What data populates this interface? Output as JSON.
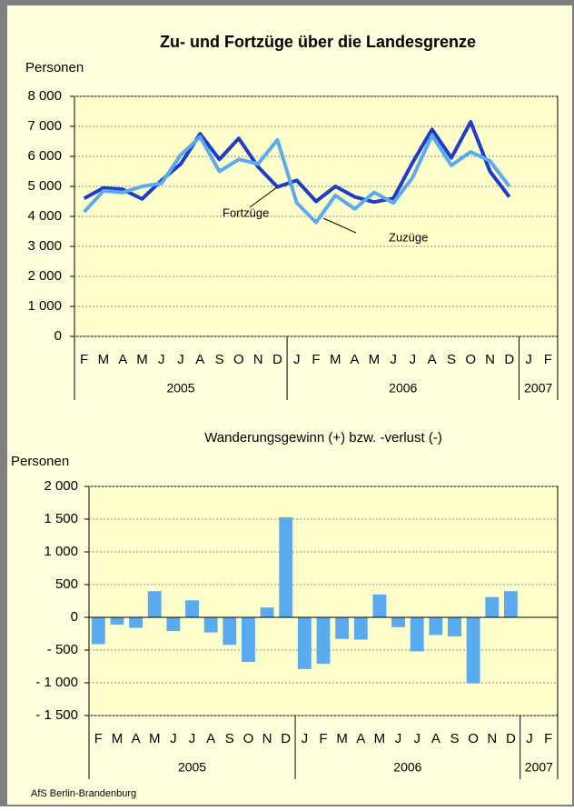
{
  "chart_data": [
    {
      "type": "line",
      "title": "Zu- und Fortzüge über die Landesgrenze",
      "y_label": "Personen",
      "categories": [
        "F",
        "M",
        "A",
        "M",
        "J",
        "J",
        "A",
        "S",
        "O",
        "N",
        "D",
        "J",
        "F",
        "M",
        "A",
        "M",
        "J",
        "J",
        "A",
        "S",
        "O",
        "N",
        "D",
        "J",
        "F"
      ],
      "group_labels": [
        "2005",
        "2006",
        "2007"
      ],
      "series": [
        {
          "name": "Fortzüge",
          "color": "#1f3cc8",
          "values": [
            4600,
            4950,
            4900,
            4580,
            5200,
            5750,
            6750,
            5900,
            6600,
            5650,
            4980,
            5200,
            4500,
            5000,
            4650,
            4480,
            4600,
            5800,
            6900,
            5950,
            7150,
            5500,
            4650,
            null,
            null
          ]
        },
        {
          "name": "Zuzüge",
          "color": "#5aaaf0",
          "values": [
            4150,
            4850,
            4800,
            5000,
            5100,
            6050,
            6650,
            5500,
            5900,
            5750,
            6550,
            4450,
            3800,
            4700,
            4250,
            4800,
            4450,
            5300,
            6700,
            5700,
            6150,
            5850,
            5000,
            null,
            null
          ]
        }
      ],
      "ylim": [
        0,
        8000
      ],
      "yticks": [
        0,
        {
          "value": 1000,
          "label": "1 000"
        },
        {
          "value": 2000,
          "label": "2 000"
        },
        {
          "value": 3000,
          "label": "3 000"
        },
        {
          "value": 4000,
          "label": "4 000"
        },
        {
          "value": 5000,
          "label": "5 000"
        },
        {
          "value": 6000,
          "label": "6 000"
        },
        {
          "value": 7000,
          "label": "7 000"
        },
        {
          "value": 8000,
          "label": "8 000"
        }
      ],
      "grid": true
    },
    {
      "type": "bar",
      "title": "Wanderungsgewinn (+) bzw. -verlust (-)",
      "y_label": "Personen",
      "categories": [
        "F",
        "M",
        "A",
        "M",
        "J",
        "J",
        "A",
        "S",
        "O",
        "N",
        "D",
        "J",
        "F",
        "M",
        "A",
        "M",
        "J",
        "J",
        "A",
        "S",
        "O",
        "N",
        "D",
        "J",
        "F"
      ],
      "group_labels": [
        "2005",
        "2006",
        "2007"
      ],
      "color": "#5aaaf0",
      "values": [
        -410,
        -110,
        -160,
        400,
        -210,
        260,
        -230,
        -420,
        -680,
        150,
        1530,
        -790,
        -710,
        -330,
        -340,
        350,
        -150,
        -520,
        -270,
        -290,
        -1010,
        310,
        400,
        null,
        null
      ],
      "ylim": [
        -1500,
        2000
      ],
      "yticks": [
        {
          "value": -1500,
          "label": "- 1 500"
        },
        {
          "value": -1000,
          "label": "- 1 000"
        },
        {
          "value": -500,
          "label": "- 500"
        },
        0,
        500,
        {
          "value": 1000,
          "label": "1 000"
        },
        {
          "value": 1500,
          "label": "1 500"
        },
        {
          "value": 2000,
          "label": "2 000"
        }
      ],
      "grid": true
    }
  ],
  "footer": "AfS Berlin-Brandenburg"
}
